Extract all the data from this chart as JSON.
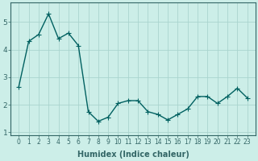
{
  "x": [
    0,
    1,
    2,
    3,
    4,
    5,
    6,
    7,
    8,
    9,
    10,
    11,
    12,
    13,
    14,
    15,
    16,
    17,
    18,
    19,
    20,
    21,
    22,
    23
  ],
  "y": [
    2.65,
    4.3,
    4.55,
    5.3,
    4.4,
    4.6,
    4.15,
    1.75,
    1.4,
    1.55,
    2.05,
    2.15,
    2.15,
    1.75,
    1.65,
    1.45,
    1.65,
    1.85,
    2.3,
    2.3,
    2.05,
    2.3,
    2.6,
    2.25
  ],
  "line_color": "#006060",
  "marker": "+",
  "markersize": 4,
  "linewidth": 1.0,
  "xlabel": "Humidex (Indice chaleur)",
  "xlabel_fontsize": 7,
  "xlabel_fontweight": "bold",
  "bg_color": "#cceee8",
  "grid_color": "#aad4ce",
  "axis_bg_color": "#cceee8",
  "ylim": [
    0.9,
    5.7
  ],
  "yticks": [
    1,
    2,
    3,
    4,
    5
  ],
  "xticks": [
    0,
    1,
    2,
    3,
    4,
    5,
    6,
    7,
    8,
    9,
    10,
    11,
    12,
    13,
    14,
    15,
    16,
    17,
    18,
    19,
    20,
    21,
    22,
    23
  ],
  "tick_fontsize": 5.5,
  "spine_color": "#336666"
}
